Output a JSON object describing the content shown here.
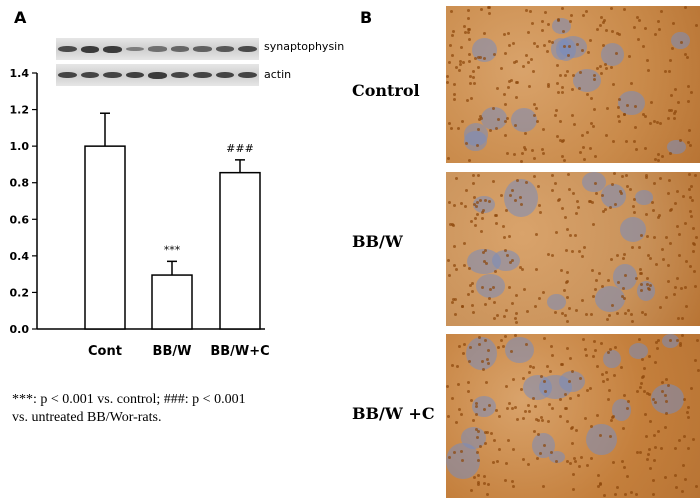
{
  "panel_a_label": "A",
  "panel_b_label": "B",
  "blots": [
    {
      "label": "synaptophysin",
      "bands": [
        0.85,
        1.0,
        1.0,
        0.3,
        0.45,
        0.55,
        0.6,
        0.7,
        0.85
      ]
    },
    {
      "label": "actin",
      "bands": [
        0.9,
        0.9,
        0.9,
        0.95,
        1.0,
        0.9,
        0.9,
        0.9,
        0.9
      ]
    }
  ],
  "chart_data": {
    "type": "bar",
    "categories": [
      "Cont",
      "BB/W",
      "BB/W+C"
    ],
    "values": [
      1.0,
      0.295,
      0.855
    ],
    "errors": [
      0.18,
      0.075,
      0.07
    ],
    "annotations": [
      "",
      "***",
      "###"
    ],
    "ylim": [
      0,
      1.4
    ],
    "yticks": [
      "0.0",
      "0.2",
      "0.4",
      "0.6",
      "0.8",
      "1.0",
      "1.2",
      "1.4"
    ],
    "grid": false
  },
  "footnote_line1": "***: p < 0.001 vs. control;  ###: p < 0.001",
  "footnote_line2": "vs. untreated BB/Wor-rats.",
  "micrographs": [
    {
      "label": "Control",
      "stain": "#c98a4a",
      "nuclei_density": 0.8
    },
    {
      "label": "BB/W",
      "stain": "#c9925a",
      "nuclei_density": 0.7
    },
    {
      "label": "BB/W +C",
      "stain": "#c47f3c",
      "nuclei_density": 0.9
    }
  ],
  "colors": {
    "bar_fill": "#ffffff",
    "bar_stroke": "#000000",
    "band": "#333333"
  }
}
